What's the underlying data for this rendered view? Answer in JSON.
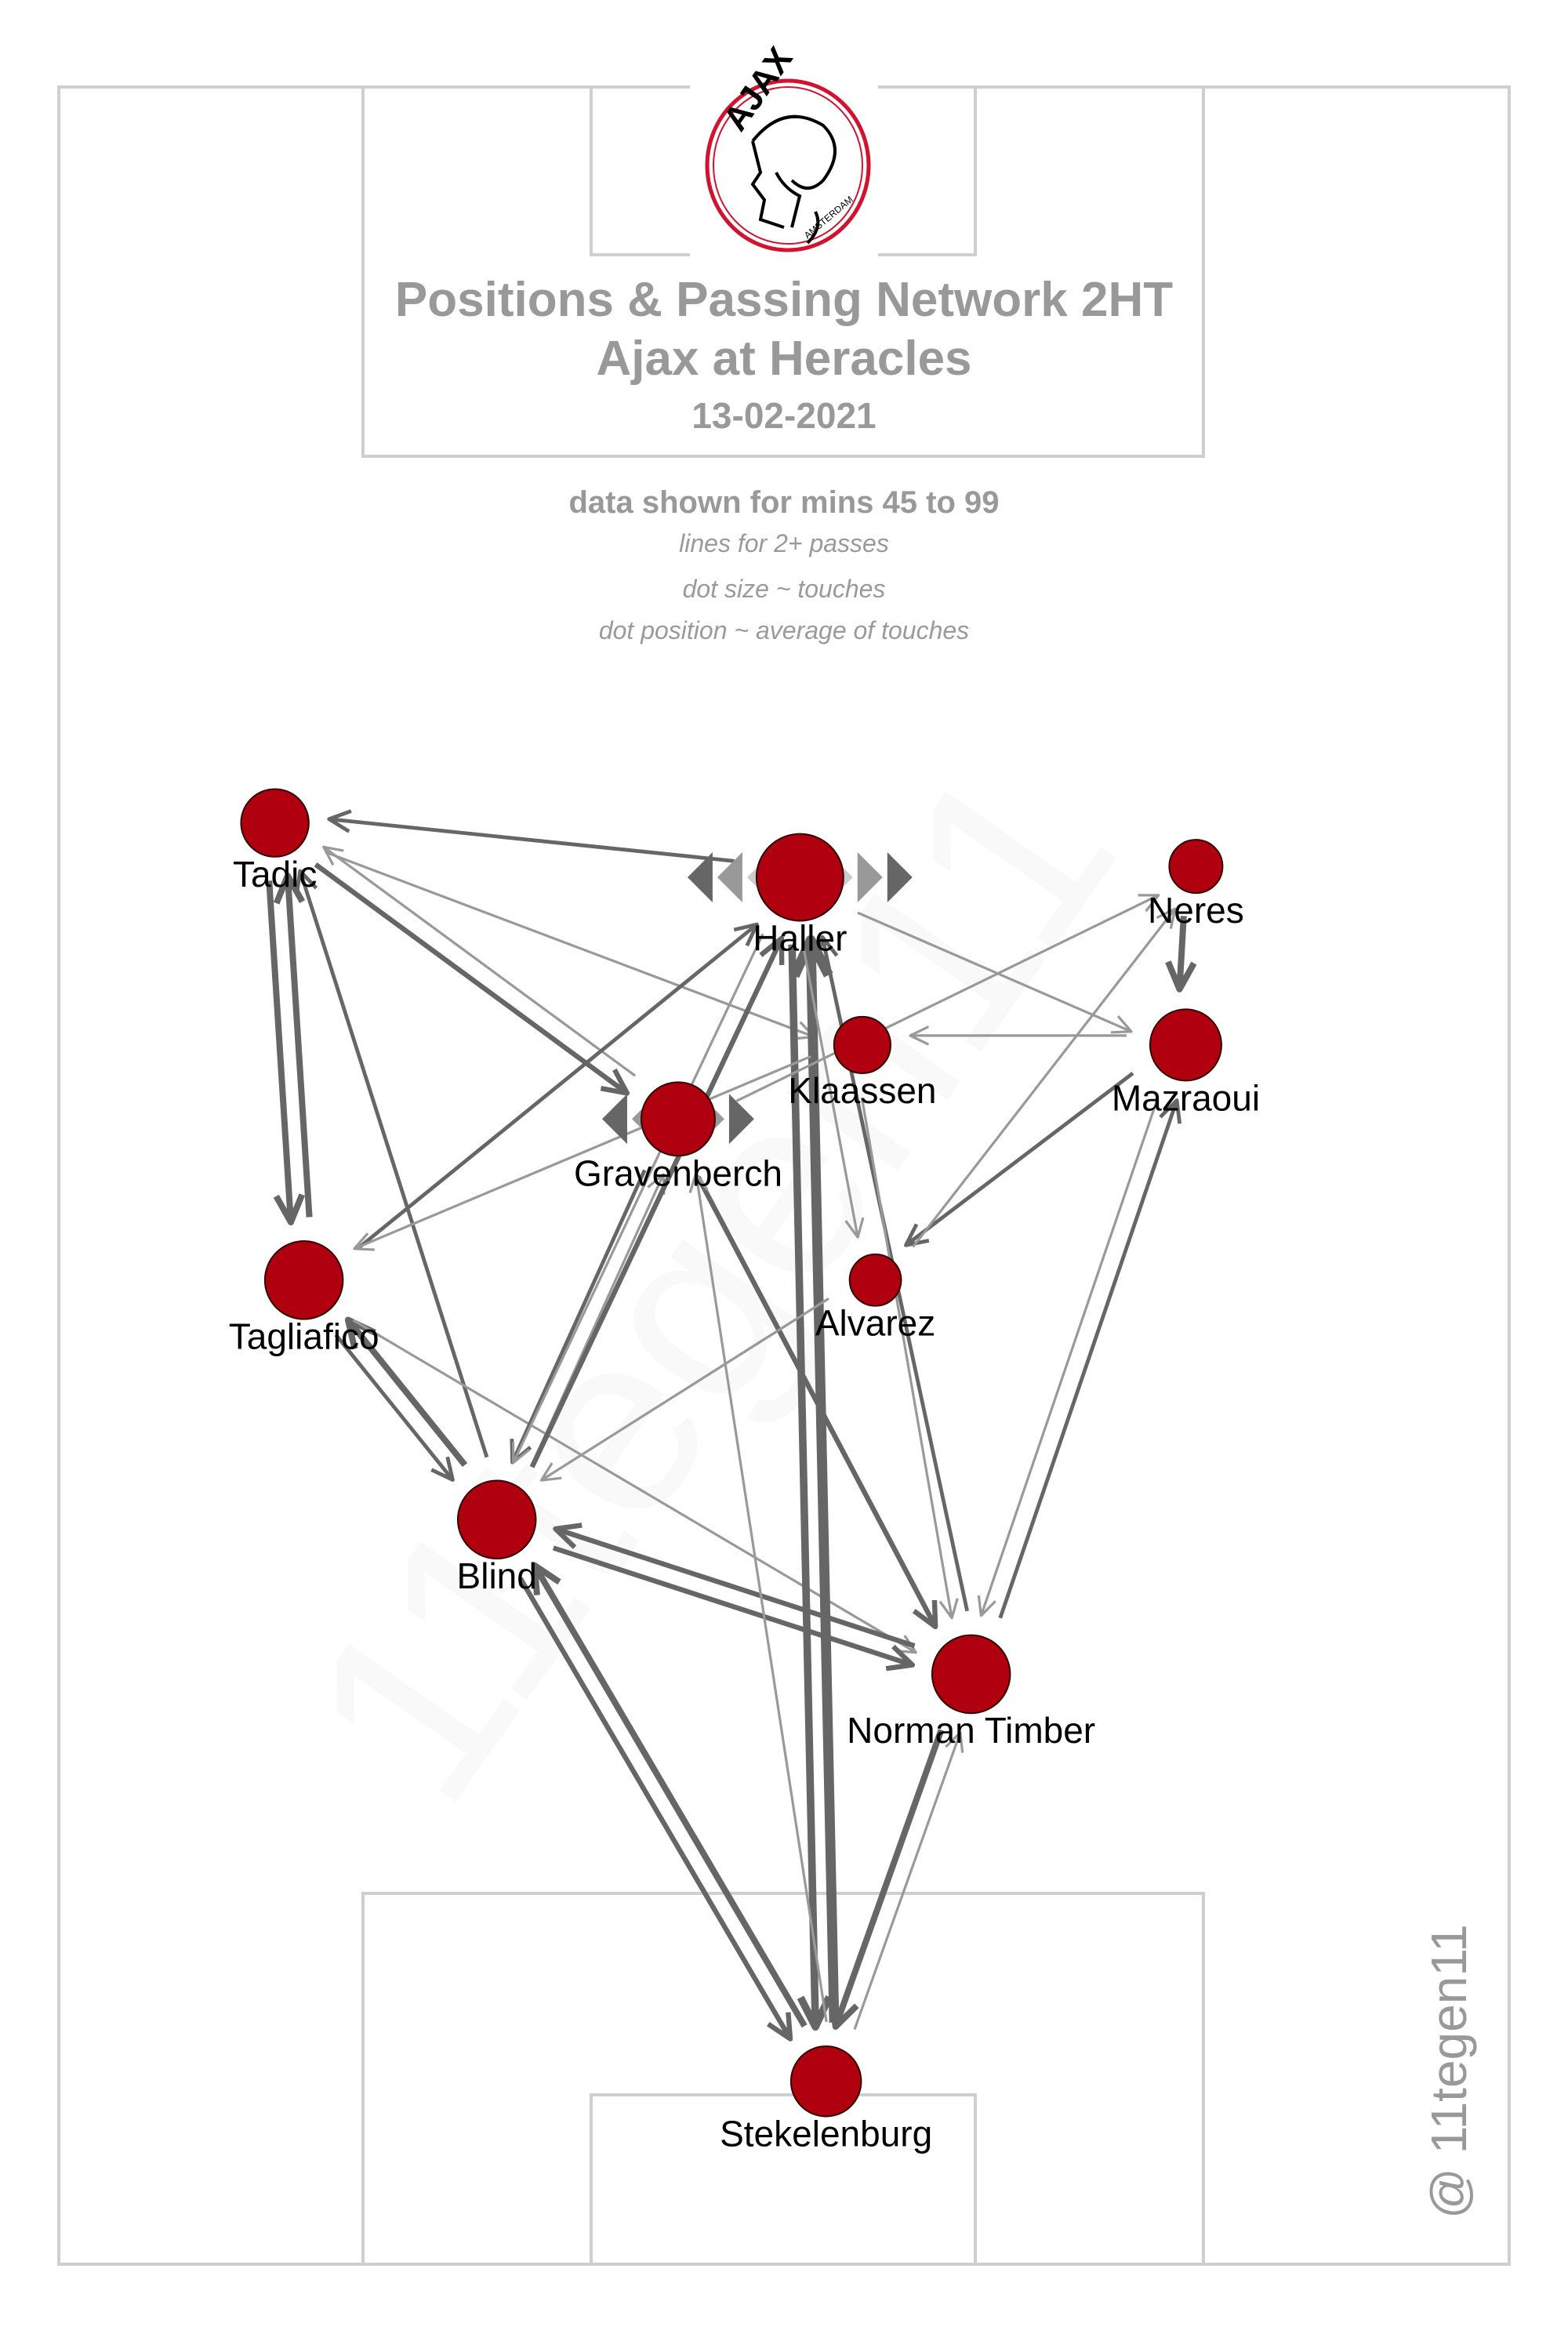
{
  "header": {
    "logo_text": "AJAX",
    "logo_subtext": "AMSTERDAM",
    "title_line1": "Positions & Passing Network 2HT",
    "title_line2": "Ajax at Heracles",
    "date": "13-02-2021",
    "subtitle": "data shown for mins 45 to 99",
    "note1": "lines for 2+ passes",
    "note2": "dot size ~ touches",
    "note3": "dot position ~ average of touches"
  },
  "credit": "@ 11tegen11",
  "watermark": "11tegen11",
  "colors": {
    "node": "#b0000f",
    "edge": "#666666",
    "pitch_lines": "#cfcfcf",
    "title": "#999999",
    "logo_red": "#d2122e"
  },
  "chart_data": {
    "type": "network",
    "pitch_units": "0-100 width (x) and length (y), attacking upward",
    "nodes": [
      {
        "name": "Tadic",
        "x": 14.9,
        "y": 66.2,
        "touches": 22
      },
      {
        "name": "Haller",
        "x": 51.1,
        "y": 63.7,
        "touches": 40
      },
      {
        "name": "Neres",
        "x": 78.4,
        "y": 64.2,
        "touches": 12
      },
      {
        "name": "Klaassen",
        "x": 55.4,
        "y": 56.0,
        "touches": 14
      },
      {
        "name": "Mazraoui",
        "x": 77.7,
        "y": 56.0,
        "touches": 25
      },
      {
        "name": "Gravenberch",
        "x": 42.7,
        "y": 52.6,
        "touches": 27
      },
      {
        "name": "Tagliafico",
        "x": 16.9,
        "y": 45.2,
        "touches": 31
      },
      {
        "name": "Alvarez",
        "x": 56.3,
        "y": 45.2,
        "touches": 11
      },
      {
        "name": "Blind",
        "x": 30.2,
        "y": 34.2,
        "touches": 31
      },
      {
        "name": "Norman Timber",
        "x": 62.9,
        "y": 27.1,
        "touches": 31
      },
      {
        "name": "Stekelenburg",
        "x": 52.9,
        "y": 8.4,
        "touches": 24
      }
    ],
    "edges": [
      {
        "from": "Haller",
        "to": "Tadic",
        "passes": 3
      },
      {
        "from": "Tadic",
        "to": "Tagliafico",
        "passes": 5
      },
      {
        "from": "Tagliafico",
        "to": "Tadic",
        "passes": 5
      },
      {
        "from": "Tadic",
        "to": "Gravenberch",
        "passes": 4
      },
      {
        "from": "Gravenberch",
        "to": "Tadic",
        "passes": 2
      },
      {
        "from": "Tadic",
        "to": "Klaassen",
        "passes": 2
      },
      {
        "from": "Blind",
        "to": "Tadic",
        "passes": 3
      },
      {
        "from": "Tagliafico",
        "to": "Haller",
        "passes": 3
      },
      {
        "from": "Tagliafico",
        "to": "Blind",
        "passes": 3
      },
      {
        "from": "Blind",
        "to": "Tagliafico",
        "passes": 5
      },
      {
        "from": "Tagliafico",
        "to": "Norman Timber",
        "passes": 2
      },
      {
        "from": "Blind",
        "to": "Gravenberch",
        "passes": 2
      },
      {
        "from": "Gravenberch",
        "to": "Blind",
        "passes": 3
      },
      {
        "from": "Blind",
        "to": "Haller",
        "passes": 4
      },
      {
        "from": "Haller",
        "to": "Blind",
        "passes": 2
      },
      {
        "from": "Gravenberch",
        "to": "Norman Timber",
        "passes": 4
      },
      {
        "from": "Blind",
        "to": "Norman Timber",
        "passes": 4
      },
      {
        "from": "Norman Timber",
        "to": "Blind",
        "passes": 4
      },
      {
        "from": "Blind",
        "to": "Stekelenburg",
        "passes": 4
      },
      {
        "from": "Stekelenburg",
        "to": "Blind",
        "passes": 5
      },
      {
        "from": "Stekelenburg",
        "to": "Haller",
        "passes": 8
      },
      {
        "from": "Haller",
        "to": "Stekelenburg",
        "passes": 6
      },
      {
        "from": "Norman Timber",
        "to": "Stekelenburg",
        "passes": 5
      },
      {
        "from": "Stekelenburg",
        "to": "Norman Timber",
        "passes": 2
      },
      {
        "from": "Norman Timber",
        "to": "Mazraoui",
        "passes": 3
      },
      {
        "from": "Mazraoui",
        "to": "Alvarez",
        "passes": 3
      },
      {
        "from": "Mazraoui",
        "to": "Klaassen",
        "passes": 2
      },
      {
        "from": "Haller",
        "to": "Mazraoui",
        "passes": 2
      },
      {
        "from": "Neres",
        "to": "Mazraoui",
        "passes": 5
      },
      {
        "from": "Alvarez",
        "to": "Neres",
        "passes": 2
      },
      {
        "from": "Gravenberch",
        "to": "Neres",
        "passes": 2
      },
      {
        "from": "Haller",
        "to": "Alvarez",
        "passes": 2
      },
      {
        "from": "Norman Timber",
        "to": "Haller",
        "passes": 3
      },
      {
        "from": "Alvarez",
        "to": "Blind",
        "passes": 2
      },
      {
        "from": "Klaassen",
        "to": "Tagliafico",
        "passes": 2
      },
      {
        "from": "Mazraoui",
        "to": "Norman Timber",
        "passes": 2
      },
      {
        "from": "Klaassen",
        "to": "Norman Timber",
        "passes": 2
      },
      {
        "from": "Stekelenburg",
        "to": "Gravenberch",
        "passes": 2
      }
    ]
  }
}
